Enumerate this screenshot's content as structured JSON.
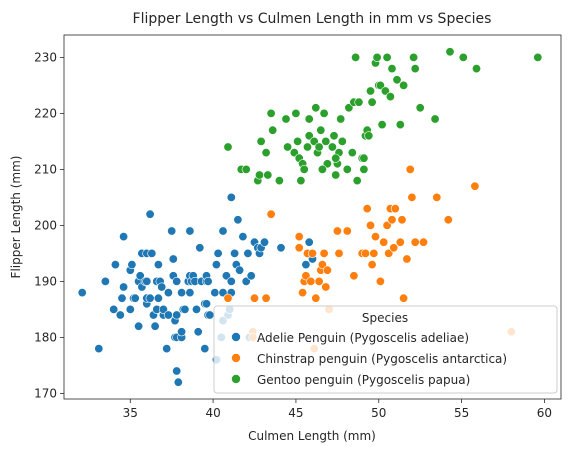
{
  "chart_data": {
    "type": "scatter",
    "title": "Flipper Length vs Culmen Length in mm vs Species",
    "xlabel": "Culmen Length (mm)",
    "ylabel": "Flipper Length (mm)",
    "xlim": [
      31,
      61
    ],
    "ylim": [
      169,
      234
    ],
    "xticks": [
      35,
      40,
      45,
      50,
      55,
      60
    ],
    "yticks": [
      170,
      180,
      190,
      200,
      210,
      220,
      230
    ],
    "grid": false,
    "legend": {
      "title": "Species",
      "placement": "bottom-right"
    },
    "series": [
      {
        "name": "Adelie Penguin (Pygoscelis adeliae)",
        "color": "#1f77b4",
        "points": [
          [
            32.1,
            188
          ],
          [
            33.1,
            178
          ],
          [
            33.5,
            190
          ],
          [
            34.0,
            185
          ],
          [
            34.1,
            193
          ],
          [
            34.4,
            184
          ],
          [
            34.5,
            187
          ],
          [
            34.6,
            189
          ],
          [
            34.6,
            198
          ],
          [
            35.0,
            192
          ],
          [
            35.0,
            185
          ],
          [
            35.1,
            193
          ],
          [
            35.2,
            187
          ],
          [
            35.3,
            187
          ],
          [
            35.5,
            182
          ],
          [
            35.5,
            190
          ],
          [
            35.6,
            191
          ],
          [
            35.7,
            189
          ],
          [
            35.7,
            195
          ],
          [
            35.9,
            190
          ],
          [
            36.0,
            195
          ],
          [
            36.0,
            186
          ],
          [
            36.0,
            190
          ],
          [
            36.0,
            187
          ],
          [
            36.2,
            187
          ],
          [
            36.2,
            202
          ],
          [
            36.3,
            195
          ],
          [
            36.4,
            184
          ],
          [
            36.5,
            182
          ],
          [
            36.6,
            185
          ],
          [
            36.6,
            190
          ],
          [
            36.7,
            187
          ],
          [
            36.7,
            193
          ],
          [
            36.8,
            190
          ],
          [
            36.9,
            189
          ],
          [
            37.0,
            184
          ],
          [
            37.0,
            185
          ],
          [
            37.2,
            178
          ],
          [
            37.3,
            184
          ],
          [
            37.3,
            188
          ],
          [
            37.5,
            199
          ],
          [
            37.6,
            191
          ],
          [
            37.6,
            194
          ],
          [
            37.7,
            183
          ],
          [
            37.7,
            180
          ],
          [
            37.8,
            174
          ],
          [
            37.8,
            180
          ],
          [
            37.9,
            172
          ],
          [
            37.8,
            184
          ],
          [
            37.8,
            190
          ],
          [
            38.1,
            180
          ],
          [
            38.1,
            181
          ],
          [
            38.1,
            188
          ],
          [
            38.2,
            185
          ],
          [
            38.3,
            185
          ],
          [
            38.5,
            190
          ],
          [
            38.6,
            188
          ],
          [
            38.6,
            191
          ],
          [
            38.6,
            199
          ],
          [
            38.7,
            190
          ],
          [
            38.8,
            191
          ],
          [
            38.9,
            190
          ],
          [
            39.0,
            185
          ],
          [
            39.1,
            181
          ],
          [
            39.2,
            196
          ],
          [
            39.3,
            190
          ],
          [
            39.5,
            186
          ],
          [
            39.5,
            178
          ],
          [
            39.6,
            186
          ],
          [
            39.6,
            190
          ],
          [
            39.6,
            191
          ],
          [
            39.7,
            184
          ],
          [
            39.7,
            190
          ],
          [
            39.8,
            184
          ],
          [
            40.1,
            188
          ],
          [
            40.2,
            176
          ],
          [
            40.2,
            193
          ],
          [
            40.3,
            195
          ],
          [
            40.5,
            180
          ],
          [
            40.6,
            183
          ],
          [
            40.6,
            188
          ],
          [
            40.6,
            199
          ],
          [
            40.8,
            191
          ],
          [
            40.9,
            184
          ],
          [
            40.9,
            187
          ],
          [
            40.9,
            214
          ],
          [
            41.0,
            185
          ],
          [
            41.1,
            188
          ],
          [
            41.1,
            190
          ],
          [
            41.1,
            205
          ],
          [
            41.3,
            195
          ],
          [
            41.4,
            193
          ],
          [
            41.5,
            201
          ],
          [
            41.6,
            192
          ],
          [
            41.8,
            198
          ],
          [
            42.0,
            190
          ],
          [
            42.1,
            195
          ],
          [
            42.2,
            180
          ],
          [
            42.3,
            191
          ],
          [
            42.5,
            197
          ],
          [
            42.7,
            196
          ],
          [
            42.8,
            195
          ],
          [
            42.9,
            196
          ],
          [
            43.1,
            197
          ],
          [
            43.2,
            187
          ],
          [
            44.1,
            196
          ],
          [
            45.6,
            191
          ],
          [
            45.8,
            197
          ],
          [
            46.0,
            194
          ],
          [
            45.6,
            193
          ]
        ]
      },
      {
        "name": "Chinstrap penguin (Pygoscelis antarctica)",
        "color": "#ff7f0e",
        "points": [
          [
            40.9,
            187
          ],
          [
            42.4,
            181
          ],
          [
            42.5,
            187
          ],
          [
            43.2,
            187
          ],
          [
            43.5,
            202
          ],
          [
            45.2,
            198
          ],
          [
            45.4,
            188
          ],
          [
            45.5,
            190
          ],
          [
            45.6,
            191
          ],
          [
            45.7,
            195
          ],
          [
            45.9,
            190
          ],
          [
            46.0,
            195
          ],
          [
            46.1,
            178
          ],
          [
            46.2,
            187
          ],
          [
            46.4,
            190
          ],
          [
            46.5,
            192
          ],
          [
            46.6,
            193
          ],
          [
            46.7,
            195
          ],
          [
            46.8,
            189
          ],
          [
            46.9,
            192
          ],
          [
            47.0,
            185
          ],
          [
            47.5,
            199
          ],
          [
            47.6,
            195
          ],
          [
            48.1,
            199
          ],
          [
            48.5,
            191
          ],
          [
            49.0,
            195
          ],
          [
            49.2,
            195
          ],
          [
            49.3,
            203
          ],
          [
            49.5,
            200
          ],
          [
            49.6,
            193
          ],
          [
            49.7,
            195
          ],
          [
            49.8,
            198
          ],
          [
            50.1,
            190
          ],
          [
            50.3,
            197
          ],
          [
            50.5,
            200
          ],
          [
            50.6,
            195
          ],
          [
            50.7,
            203
          ],
          [
            50.8,
            201
          ],
          [
            50.9,
            196
          ],
          [
            51.0,
            203
          ],
          [
            51.3,
            197
          ],
          [
            51.4,
            201
          ],
          [
            51.5,
            187
          ],
          [
            51.7,
            194
          ],
          [
            51.9,
            210
          ],
          [
            52.0,
            205
          ],
          [
            52.2,
            197
          ],
          [
            52.7,
            197
          ],
          [
            53.5,
            205
          ],
          [
            54.2,
            201
          ],
          [
            55.8,
            207
          ],
          [
            58.0,
            181
          ],
          [
            42.4,
            180
          ],
          [
            45.2,
            196
          ]
        ]
      },
      {
        "name": "Gentoo penguin (Pygoscelis papua)",
        "color": "#2ca02c",
        "points": [
          [
            40.9,
            214
          ],
          [
            41.7,
            210
          ],
          [
            42.0,
            210
          ],
          [
            42.7,
            208
          ],
          [
            42.8,
            209
          ],
          [
            42.9,
            215
          ],
          [
            43.2,
            213
          ],
          [
            43.3,
            209
          ],
          [
            43.5,
            220
          ],
          [
            43.6,
            217
          ],
          [
            44.0,
            208
          ],
          [
            44.4,
            219
          ],
          [
            44.5,
            214
          ],
          [
            44.9,
            213
          ],
          [
            45.0,
            220
          ],
          [
            45.1,
            215
          ],
          [
            45.2,
            212
          ],
          [
            45.3,
            208
          ],
          [
            45.4,
            211
          ],
          [
            45.5,
            210
          ],
          [
            45.7,
            214
          ],
          [
            45.8,
            216
          ],
          [
            46.1,
            215
          ],
          [
            46.2,
            221
          ],
          [
            46.3,
            213
          ],
          [
            46.4,
            214
          ],
          [
            46.5,
            217
          ],
          [
            46.7,
            220
          ],
          [
            46.8,
            215
          ],
          [
            46.9,
            211
          ],
          [
            47.2,
            214
          ],
          [
            47.3,
            216
          ],
          [
            47.4,
            209
          ],
          [
            47.5,
            211
          ],
          [
            47.6,
            213
          ],
          [
            47.7,
            219
          ],
          [
            47.8,
            215
          ],
          [
            48.1,
            210
          ],
          [
            48.2,
            221
          ],
          [
            48.4,
            213
          ],
          [
            48.5,
            222
          ],
          [
            48.6,
            230
          ],
          [
            48.7,
            208
          ],
          [
            48.8,
            222
          ],
          [
            49.0,
            212
          ],
          [
            49.1,
            210
          ],
          [
            49.2,
            216
          ],
          [
            49.3,
            217
          ],
          [
            49.4,
            216
          ],
          [
            49.5,
            224
          ],
          [
            49.6,
            222
          ],
          [
            49.8,
            229
          ],
          [
            49.9,
            230
          ],
          [
            50.0,
            225
          ],
          [
            50.1,
            225
          ],
          [
            50.2,
            218
          ],
          [
            50.4,
            224
          ],
          [
            50.5,
            230
          ],
          [
            50.7,
            223
          ],
          [
            50.8,
            228
          ],
          [
            51.1,
            226
          ],
          [
            51.3,
            218
          ],
          [
            51.5,
            225
          ],
          [
            52.1,
            230
          ],
          [
            52.2,
            228
          ],
          [
            52.5,
            221
          ],
          [
            53.4,
            219
          ],
          [
            54.3,
            231
          ],
          [
            55.1,
            230
          ],
          [
            55.9,
            228
          ],
          [
            59.6,
            230
          ],
          [
            46.6,
            210
          ],
          [
            47.4,
            212
          ],
          [
            45.8,
            219
          ],
          [
            49.1,
            212
          ]
        ]
      }
    ]
  }
}
